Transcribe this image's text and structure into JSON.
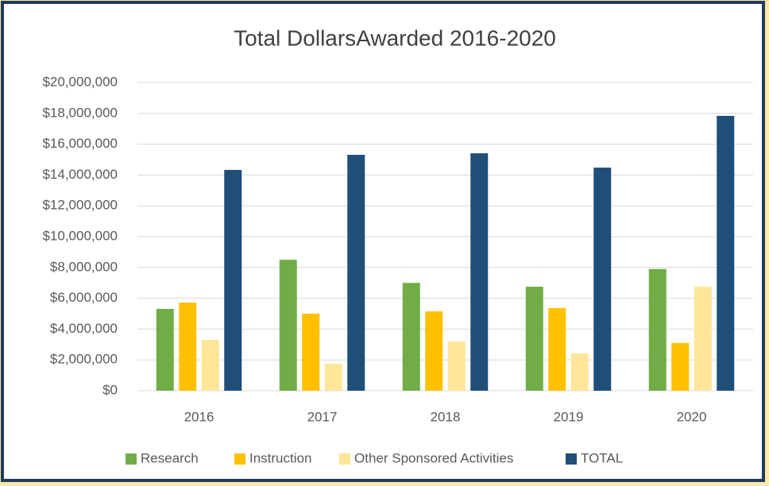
{
  "chart_data": {
    "type": "bar",
    "title": "Total DollarsAwarded 2016-2020",
    "categories": [
      "2016",
      "2017",
      "2018",
      "2019",
      "2020"
    ],
    "series": [
      {
        "name": "Research",
        "color": "#70ad47",
        "values": [
          5310000,
          8500000,
          7000000,
          6750000,
          7900000
        ]
      },
      {
        "name": "Instruction",
        "color": "#ffc000",
        "values": [
          5720000,
          5000000,
          5150000,
          5360000,
          3100000
        ]
      },
      {
        "name": "Other Sponsored Activities",
        "color": "#ffe699",
        "values": [
          3300000,
          1750000,
          3200000,
          2420000,
          6750000
        ]
      },
      {
        "name": "TOTAL",
        "color": "#1f4e79",
        "values": [
          14330000,
          15310000,
          15410000,
          14480000,
          17840000
        ]
      }
    ],
    "ylim": [
      0,
      20000000
    ],
    "yticks": [
      {
        "value": 0,
        "label": "$0"
      },
      {
        "value": 2000000,
        "label": "$2,000,000"
      },
      {
        "value": 4000000,
        "label": "$4,000,000"
      },
      {
        "value": 6000000,
        "label": "$6,000,000"
      },
      {
        "value": 8000000,
        "label": "$8,000,000"
      },
      {
        "value": 10000000,
        "label": "$10,000,000"
      },
      {
        "value": 12000000,
        "label": "$12,000,000"
      },
      {
        "value": 14000000,
        "label": "$14,000,000"
      },
      {
        "value": 16000000,
        "label": "$16,000,000"
      },
      {
        "value": 18000000,
        "label": "$18,000,000"
      },
      {
        "value": 20000000,
        "label": "$20,000,000"
      }
    ],
    "grid": true,
    "legend": "bottom"
  }
}
